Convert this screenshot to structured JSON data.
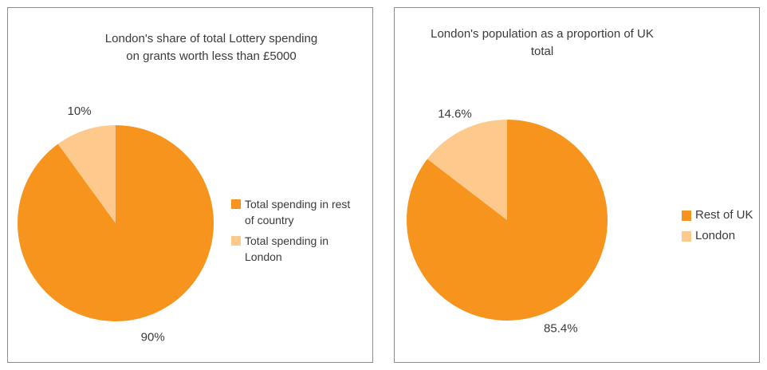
{
  "colors": {
    "primary": "#f7941d",
    "secondary": "#fdc98d"
  },
  "chart_data": [
    {
      "type": "pie",
      "title": "London's share of total Lottery spending on grants worth less than £5000",
      "series": [
        {
          "name": "Total spending in rest of country",
          "value": 90,
          "label": "90%",
          "color": "#f7941d"
        },
        {
          "name": "Total spending in London",
          "value": 10,
          "label": "10%",
          "color": "#fdc98d"
        }
      ],
      "legend": "right"
    },
    {
      "type": "pie",
      "title": "London's population as a proportion of UK total",
      "series": [
        {
          "name": "Rest of UK",
          "value": 85.4,
          "label": "85.4%",
          "color": "#f7941d"
        },
        {
          "name": "London",
          "value": 14.6,
          "label": "14.6%",
          "color": "#fdc98d"
        }
      ],
      "legend": "right"
    }
  ]
}
